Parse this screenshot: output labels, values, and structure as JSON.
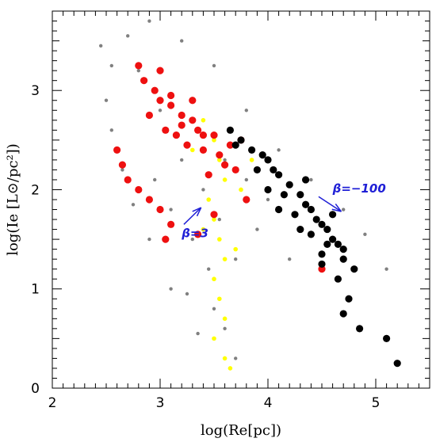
{
  "chart_data": {
    "type": "scatter",
    "xlabel": "log(Re[pc])",
    "ylabel": "log(Ie [L⊙/pc²])",
    "xlim": [
      2,
      5.5
    ],
    "ylim": [
      0,
      3.8
    ],
    "x_ticks": [
      "2",
      "3",
      "4",
      "5"
    ],
    "y_ticks": [
      "0",
      "1",
      "2",
      "3"
    ],
    "grid": false,
    "colors": {
      "gray": "#808080",
      "yellow": "#ffff00",
      "red": "#ee1010",
      "black": "#000000",
      "annotation": "#1f1fd6"
    },
    "series": [
      {
        "color": "#808080",
        "marker": "small-dot",
        "points": [
          [
            2.45,
            3.45
          ],
          [
            2.55,
            3.25
          ],
          [
            2.7,
            3.55
          ],
          [
            2.9,
            3.7
          ],
          [
            3.2,
            3.5
          ],
          [
            3.5,
            3.25
          ],
          [
            3.8,
            2.8
          ],
          [
            4.1,
            2.4
          ],
          [
            4.4,
            2.1
          ],
          [
            4.7,
            1.8
          ],
          [
            4.9,
            1.55
          ],
          [
            5.1,
            1.2
          ],
          [
            4.6,
            1.5
          ],
          [
            4.3,
            1.6
          ],
          [
            4.0,
            1.9
          ],
          [
            3.7,
            1.3
          ],
          [
            3.5,
            0.8
          ],
          [
            3.35,
            0.55
          ],
          [
            3.1,
            1.0
          ],
          [
            2.9,
            1.5
          ],
          [
            2.75,
            1.85
          ],
          [
            2.65,
            2.2
          ],
          [
            2.55,
            2.6
          ],
          [
            2.5,
            2.9
          ],
          [
            2.8,
            3.2
          ],
          [
            3.0,
            2.8
          ],
          [
            3.2,
            2.3
          ],
          [
            3.4,
            2.0
          ],
          [
            3.55,
            1.7
          ],
          [
            3.3,
            1.5
          ],
          [
            3.1,
            1.8
          ],
          [
            2.95,
            2.1
          ],
          [
            3.6,
            2.3
          ],
          [
            3.8,
            2.1
          ],
          [
            3.9,
            1.6
          ],
          [
            4.2,
            1.3
          ],
          [
            3.45,
            1.2
          ],
          [
            3.25,
            0.95
          ],
          [
            3.6,
            0.6
          ],
          [
            3.7,
            0.3
          ]
        ]
      },
      {
        "color": "#ffff00",
        "marker": "dot",
        "points": [
          [
            3.5,
            2.5
          ],
          [
            3.55,
            2.3
          ],
          [
            3.6,
            2.1
          ],
          [
            3.45,
            1.9
          ],
          [
            3.5,
            1.7
          ],
          [
            3.55,
            1.5
          ],
          [
            3.6,
            1.3
          ],
          [
            3.5,
            1.1
          ],
          [
            3.55,
            0.9
          ],
          [
            3.6,
            0.7
          ],
          [
            3.5,
            0.5
          ],
          [
            3.6,
            0.3
          ],
          [
            3.65,
            0.2
          ],
          [
            3.7,
            1.4
          ],
          [
            3.4,
            1.6
          ],
          [
            3.75,
            2.0
          ],
          [
            3.85,
            2.3
          ],
          [
            3.3,
            2.4
          ],
          [
            3.4,
            2.7
          ],
          [
            3.65,
            2.6
          ]
        ]
      },
      {
        "color": "#ee1010",
        "marker": "large-dot",
        "points": [
          [
            2.6,
            2.4
          ],
          [
            2.65,
            2.25
          ],
          [
            2.7,
            2.1
          ],
          [
            2.8,
            2.0
          ],
          [
            2.9,
            1.9
          ],
          [
            3.0,
            1.8
          ],
          [
            3.1,
            1.65
          ],
          [
            3.05,
            1.5
          ],
          [
            3.35,
            1.55
          ],
          [
            3.5,
            1.75
          ],
          [
            2.85,
            3.1
          ],
          [
            2.95,
            3.0
          ],
          [
            3.0,
            2.9
          ],
          [
            3.1,
            2.85
          ],
          [
            3.2,
            2.75
          ],
          [
            3.3,
            2.7
          ],
          [
            3.35,
            2.6
          ],
          [
            3.15,
            2.55
          ],
          [
            3.05,
            2.6
          ],
          [
            3.25,
            2.45
          ],
          [
            3.4,
            2.4
          ],
          [
            3.55,
            2.35
          ],
          [
            3.6,
            2.25
          ],
          [
            3.45,
            2.15
          ],
          [
            3.7,
            2.2
          ],
          [
            3.65,
            2.45
          ],
          [
            2.9,
            2.75
          ],
          [
            3.1,
            2.95
          ],
          [
            3.2,
            2.65
          ],
          [
            3.4,
            2.55
          ],
          [
            2.8,
            3.25
          ],
          [
            3.0,
            3.2
          ],
          [
            3.75,
            2.5
          ],
          [
            3.3,
            2.9
          ],
          [
            3.5,
            2.55
          ],
          [
            3.8,
            1.9
          ],
          [
            4.5,
            1.2
          ]
        ]
      },
      {
        "color": "#000000",
        "marker": "large-dot",
        "points": [
          [
            3.65,
            2.6
          ],
          [
            3.75,
            2.5
          ],
          [
            3.85,
            2.4
          ],
          [
            3.95,
            2.35
          ],
          [
            4.05,
            2.2
          ],
          [
            4.1,
            2.15
          ],
          [
            4.0,
            2.3
          ],
          [
            4.2,
            2.05
          ],
          [
            4.3,
            1.95
          ],
          [
            4.35,
            1.85
          ],
          [
            4.4,
            1.8
          ],
          [
            4.45,
            1.7
          ],
          [
            4.5,
            1.65
          ],
          [
            4.55,
            1.6
          ],
          [
            4.6,
            1.5
          ],
          [
            4.65,
            1.45
          ],
          [
            4.7,
            1.4
          ],
          [
            4.25,
            1.75
          ],
          [
            4.3,
            1.6
          ],
          [
            4.55,
            1.45
          ],
          [
            4.7,
            1.3
          ],
          [
            4.8,
            1.2
          ],
          [
            4.65,
            1.1
          ],
          [
            4.5,
            1.25
          ],
          [
            4.4,
            1.55
          ],
          [
            4.15,
            1.95
          ],
          [
            4.0,
            2.0
          ],
          [
            3.9,
            2.2
          ],
          [
            3.7,
            2.45
          ],
          [
            4.1,
            1.8
          ],
          [
            4.35,
            2.1
          ],
          [
            4.6,
            1.75
          ],
          [
            4.75,
            0.9
          ],
          [
            4.5,
            1.35
          ],
          [
            4.85,
            0.6
          ],
          [
            4.7,
            0.75
          ],
          [
            5.1,
            0.5
          ],
          [
            5.2,
            0.25
          ]
        ]
      }
    ],
    "annotations": [
      {
        "text": "β=3",
        "x": 3.2,
        "y": 1.52
      },
      {
        "text": "β=−100",
        "x": 4.6,
        "y": 1.97
      }
    ],
    "arrows": [
      {
        "from": [
          3.22,
          1.65
        ],
        "to": [
          3.38,
          1.82
        ]
      },
      {
        "from": [
          4.47,
          1.93
        ],
        "to": [
          4.68,
          1.78
        ]
      }
    ]
  }
}
